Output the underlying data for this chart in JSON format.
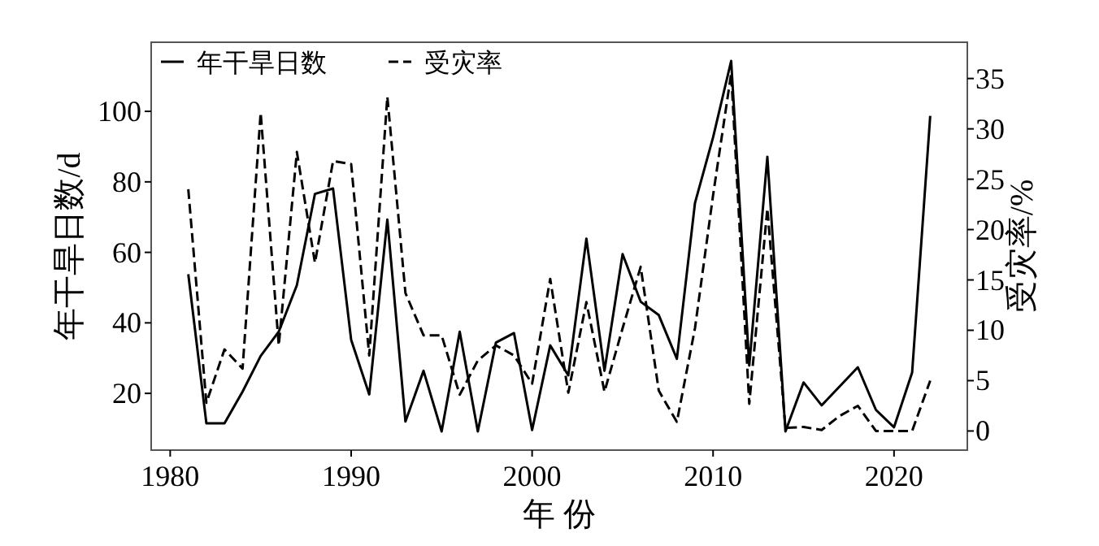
{
  "chart_data": {
    "type": "line",
    "xlabel": "年 份",
    "ylabel": "年干旱日数/d",
    "y2label": "受灾率/%",
    "x": [
      1981,
      1982,
      1983,
      1984,
      1985,
      1986,
      1987,
      1988,
      1989,
      1990,
      1991,
      1992,
      1993,
      1994,
      1995,
      1996,
      1997,
      1998,
      1999,
      2000,
      2001,
      2002,
      2003,
      2004,
      2005,
      2006,
      2007,
      2008,
      2009,
      2010,
      2011,
      2012,
      2013,
      2014,
      2015,
      2016,
      2017,
      2018,
      2019,
      2020,
      2021,
      2022
    ],
    "series": [
      {
        "name": "年干旱日数",
        "color": "#000000",
        "line_style": "solid",
        "values": [
          53.8,
          11.5,
          11.5,
          20.5,
          30.6,
          37.5,
          50.7,
          76.6,
          78.1,
          35.2,
          19.7,
          69.3,
          12,
          26.4,
          9.2,
          37.5,
          9.2,
          34.4,
          37.1,
          9.6,
          33.6,
          25.1,
          63.9,
          26.4,
          59.5,
          46,
          42.2,
          29.8,
          74,
          92.6,
          114.3,
          27.9,
          87.1,
          9.2,
          23.1,
          16.6,
          22,
          27.4,
          15.3,
          10.4,
          25.9,
          98.7
        ]
      },
      {
        "name": "受灾率",
        "color": "#000000",
        "line_style": "dashed",
        "axis": "y2",
        "values": [
          24,
          2.8,
          8.1,
          6.2,
          31.6,
          8.5,
          27.7,
          16.7,
          26.8,
          26.5,
          7.5,
          33.2,
          13.7,
          9.5,
          9.5,
          3.6,
          7,
          8.5,
          7.5,
          4.7,
          15.1,
          3.8,
          12.8,
          3.9,
          10.2,
          16.3,
          4,
          0.9,
          10.2,
          23.4,
          35.5,
          2.7,
          22.1,
          0.3,
          0.4,
          0.1,
          1.5,
          2.5,
          0,
          0,
          0,
          5
        ]
      }
    ],
    "xlim": [
      1978.95,
      2024.05
    ],
    "xticks": [
      1980,
      1990,
      2000,
      2010,
      2020
    ],
    "ylim": [
      3.9,
      119.6
    ],
    "yticks": [
      20,
      40,
      60,
      80,
      100
    ],
    "y2lim": [
      -1.9,
      38.6
    ],
    "y2ticks": [
      0,
      5,
      10,
      15,
      20,
      25,
      30,
      35
    ],
    "legend": "top left",
    "grid": false
  }
}
